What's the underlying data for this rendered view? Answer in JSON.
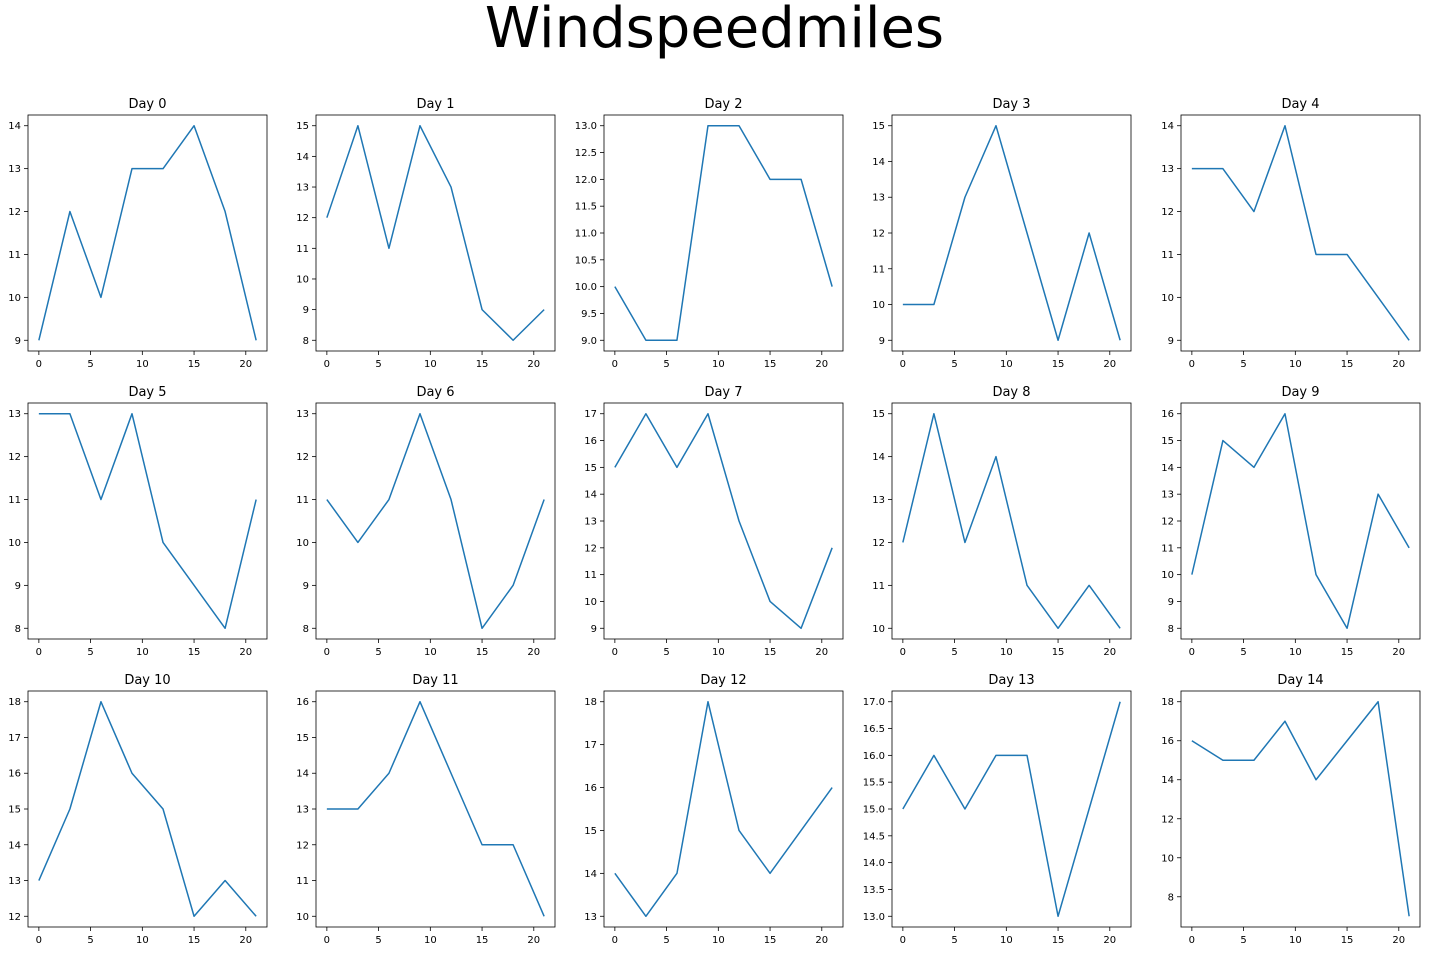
{
  "figure": {
    "title": "Windspeedmiles"
  },
  "style": {
    "line_color": "#1f77b4",
    "axes_color": "#000000",
    "background": "#ffffff"
  },
  "chart_data": [
    {
      "type": "line",
      "title": "Day 0",
      "x": [
        0,
        3,
        6,
        9,
        12,
        15,
        18,
        21
      ],
      "y": [
        9,
        12,
        10,
        13,
        13,
        14,
        12,
        9
      ],
      "xticks": [
        0,
        5,
        10,
        15,
        20
      ],
      "yticks": [
        9,
        10,
        11,
        12,
        13,
        14
      ],
      "grid": false
    },
    {
      "type": "line",
      "title": "Day 1",
      "x": [
        0,
        3,
        6,
        9,
        12,
        15,
        18,
        21
      ],
      "y": [
        12,
        15,
        11,
        15,
        13,
        9,
        8,
        9
      ],
      "xticks": [
        0,
        5,
        10,
        15,
        20
      ],
      "yticks": [
        8,
        9,
        10,
        11,
        12,
        13,
        14,
        15
      ],
      "grid": false
    },
    {
      "type": "line",
      "title": "Day 2",
      "x": [
        0,
        3,
        6,
        9,
        12,
        15,
        18,
        21
      ],
      "y": [
        10,
        9,
        9,
        13,
        13,
        12,
        12,
        10
      ],
      "xticks": [
        0,
        5,
        10,
        15,
        20
      ],
      "yticks": [
        9.0,
        9.5,
        10.0,
        10.5,
        11.0,
        11.5,
        12.0,
        12.5,
        13.0
      ],
      "ytick_labels": [
        "9.0",
        "9.5",
        "10.0",
        "10.5",
        "11.0",
        "11.5",
        "12.0",
        "12.5",
        "13.0"
      ],
      "grid": false
    },
    {
      "type": "line",
      "title": "Day 3",
      "x": [
        0,
        3,
        6,
        9,
        12,
        15,
        18,
        21
      ],
      "y": [
        10,
        10,
        13,
        15,
        12,
        9,
        12,
        9
      ],
      "xticks": [
        0,
        5,
        10,
        15,
        20
      ],
      "yticks": [
        9,
        10,
        11,
        12,
        13,
        14,
        15
      ],
      "grid": false
    },
    {
      "type": "line",
      "title": "Day 4",
      "x": [
        0,
        3,
        6,
        9,
        12,
        15,
        18,
        21
      ],
      "y": [
        13,
        13,
        12,
        14,
        11,
        11,
        10,
        9
      ],
      "xticks": [
        0,
        5,
        10,
        15,
        20
      ],
      "yticks": [
        9,
        10,
        11,
        12,
        13,
        14
      ],
      "grid": false
    },
    {
      "type": "line",
      "title": "Day 5",
      "x": [
        0,
        3,
        6,
        9,
        12,
        15,
        18,
        21
      ],
      "y": [
        13,
        13,
        11,
        13,
        10,
        9,
        8,
        11
      ],
      "xticks": [
        0,
        5,
        10,
        15,
        20
      ],
      "yticks": [
        8,
        9,
        10,
        11,
        12,
        13
      ],
      "grid": false
    },
    {
      "type": "line",
      "title": "Day 6",
      "x": [
        0,
        3,
        6,
        9,
        12,
        15,
        18,
        21
      ],
      "y": [
        11,
        10,
        11,
        13,
        11,
        8,
        9,
        11
      ],
      "xticks": [
        0,
        5,
        10,
        15,
        20
      ],
      "yticks": [
        8,
        9,
        10,
        11,
        12,
        13
      ],
      "grid": false
    },
    {
      "type": "line",
      "title": "Day 7",
      "x": [
        0,
        3,
        6,
        9,
        12,
        15,
        18,
        21
      ],
      "y": [
        15,
        17,
        15,
        17,
        13,
        10,
        9,
        12
      ],
      "xticks": [
        0,
        5,
        10,
        15,
        20
      ],
      "yticks": [
        9,
        10,
        11,
        12,
        13,
        14,
        15,
        16,
        17
      ],
      "grid": false
    },
    {
      "type": "line",
      "title": "Day 8",
      "x": [
        0,
        3,
        6,
        9,
        12,
        15,
        18,
        21
      ],
      "y": [
        12,
        15,
        12,
        14,
        11,
        10,
        11,
        10
      ],
      "xticks": [
        0,
        5,
        10,
        15,
        20
      ],
      "yticks": [
        10,
        11,
        12,
        13,
        14,
        15
      ],
      "grid": false
    },
    {
      "type": "line",
      "title": "Day 9",
      "x": [
        0,
        3,
        6,
        9,
        12,
        15,
        18,
        21
      ],
      "y": [
        10,
        15,
        14,
        16,
        10,
        8,
        13,
        11
      ],
      "xticks": [
        0,
        5,
        10,
        15,
        20
      ],
      "yticks": [
        8,
        9,
        10,
        11,
        12,
        13,
        14,
        15,
        16
      ],
      "grid": false
    },
    {
      "type": "line",
      "title": "Day 10",
      "x": [
        0,
        3,
        6,
        9,
        12,
        15,
        18,
        21
      ],
      "y": [
        13,
        15,
        18,
        16,
        15,
        12,
        13,
        12
      ],
      "xticks": [
        0,
        5,
        10,
        15,
        20
      ],
      "yticks": [
        12,
        13,
        14,
        15,
        16,
        17,
        18
      ],
      "grid": false
    },
    {
      "type": "line",
      "title": "Day 11",
      "x": [
        0,
        3,
        6,
        9,
        12,
        15,
        18,
        21
      ],
      "y": [
        13,
        13,
        14,
        16,
        14,
        12,
        12,
        10
      ],
      "xticks": [
        0,
        5,
        10,
        15,
        20
      ],
      "yticks": [
        10,
        11,
        12,
        13,
        14,
        15,
        16
      ],
      "grid": false
    },
    {
      "type": "line",
      "title": "Day 12",
      "x": [
        0,
        3,
        6,
        9,
        12,
        15,
        18,
        21
      ],
      "y": [
        14,
        13,
        14,
        18,
        15,
        14,
        15,
        16
      ],
      "xticks": [
        0,
        5,
        10,
        15,
        20
      ],
      "yticks": [
        13,
        14,
        15,
        16,
        17,
        18
      ],
      "grid": false
    },
    {
      "type": "line",
      "title": "Day 13",
      "x": [
        0,
        3,
        6,
        9,
        12,
        15,
        18,
        21
      ],
      "y": [
        15,
        16,
        15,
        16,
        16,
        13,
        15,
        17
      ],
      "xticks": [
        0,
        5,
        10,
        15,
        20
      ],
      "yticks": [
        13.0,
        13.5,
        14.0,
        14.5,
        15.0,
        15.5,
        16.0,
        16.5,
        17.0
      ],
      "ytick_labels": [
        "13.0",
        "13.5",
        "14.0",
        "14.5",
        "15.0",
        "15.5",
        "16.0",
        "16.5",
        "17.0"
      ],
      "grid": false
    },
    {
      "type": "line",
      "title": "Day 14",
      "x": [
        0,
        3,
        6,
        9,
        12,
        15,
        18,
        21
      ],
      "y": [
        16,
        15,
        15,
        17,
        14,
        16,
        18,
        7
      ],
      "xticks": [
        0,
        5,
        10,
        15,
        20
      ],
      "yticks": [
        8,
        10,
        12,
        14,
        16,
        18
      ],
      "grid": false
    }
  ]
}
